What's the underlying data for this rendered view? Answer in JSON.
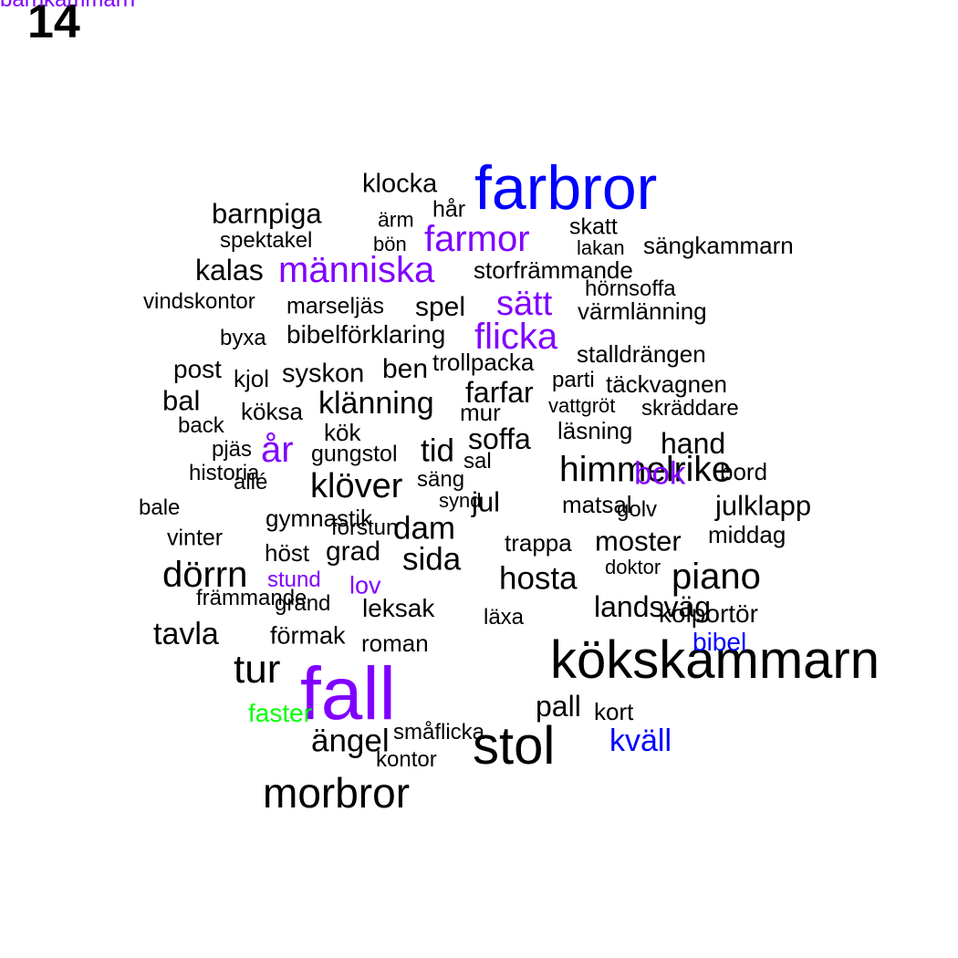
{
  "page_number": "14",
  "colors": {
    "black": "#000000",
    "purple": "#8000ff",
    "blue": "#0000ff",
    "green": "#00ff00"
  },
  "words": [
    {
      "text": "farbror",
      "color": "blue"
    },
    {
      "text": "klocka",
      "color": "black"
    },
    {
      "text": "hår",
      "color": "black"
    },
    {
      "text": "barnpiga",
      "color": "black"
    },
    {
      "text": "ärm",
      "color": "black"
    },
    {
      "text": "skatt",
      "color": "black"
    },
    {
      "text": "spektakel",
      "color": "black"
    },
    {
      "text": "bön",
      "color": "black"
    },
    {
      "text": "farmor",
      "color": "purple"
    },
    {
      "text": "lakan",
      "color": "black"
    },
    {
      "text": "sängkammarn",
      "color": "black"
    },
    {
      "text": "kalas",
      "color": "black"
    },
    {
      "text": "människa",
      "color": "purple"
    },
    {
      "text": "storfrämmande",
      "color": "black"
    },
    {
      "text": "hörnsoffa",
      "color": "black"
    },
    {
      "text": "vindskontor",
      "color": "black"
    },
    {
      "text": "marseljäs",
      "color": "black"
    },
    {
      "text": "spel",
      "color": "black"
    },
    {
      "text": "sätt",
      "color": "purple"
    },
    {
      "text": "värmlänning",
      "color": "black"
    },
    {
      "text": "byxa",
      "color": "black"
    },
    {
      "text": "bibelförklaring",
      "color": "black"
    },
    {
      "text": "flicka",
      "color": "purple"
    },
    {
      "text": "stalldrängen",
      "color": "black"
    },
    {
      "text": "post",
      "color": "black"
    },
    {
      "text": "kjol",
      "color": "black"
    },
    {
      "text": "syskon",
      "color": "black"
    },
    {
      "text": "ben",
      "color": "black"
    },
    {
      "text": "trollpacka",
      "color": "black"
    },
    {
      "text": "parti",
      "color": "black"
    },
    {
      "text": "täckvagnen",
      "color": "black"
    },
    {
      "text": "bal",
      "color": "black"
    },
    {
      "text": "köksa",
      "color": "black"
    },
    {
      "text": "klänning",
      "color": "black"
    },
    {
      "text": "farfar",
      "color": "black"
    },
    {
      "text": "mur",
      "color": "black"
    },
    {
      "text": "vattgröt",
      "color": "black"
    },
    {
      "text": "skräddare",
      "color": "black"
    },
    {
      "text": "back",
      "color": "black"
    },
    {
      "text": "kök",
      "color": "black"
    },
    {
      "text": "soffa",
      "color": "black"
    },
    {
      "text": "läsning",
      "color": "black"
    },
    {
      "text": "pjäs",
      "color": "black"
    },
    {
      "text": "år",
      "color": "purple"
    },
    {
      "text": "gungstol",
      "color": "black"
    },
    {
      "text": "tid",
      "color": "black"
    },
    {
      "text": "sal",
      "color": "black"
    },
    {
      "text": "hand",
      "color": "black"
    },
    {
      "text": "historia",
      "color": "black"
    },
    {
      "text": "allé",
      "color": "black"
    },
    {
      "text": "klöver",
      "color": "black"
    },
    {
      "text": "säng",
      "color": "black"
    },
    {
      "text": "himmelrike",
      "color": "black"
    },
    {
      "text": "bok",
      "color": "purple"
    },
    {
      "text": "bord",
      "color": "black"
    },
    {
      "text": "bale",
      "color": "black"
    },
    {
      "text": "gymnastik",
      "color": "black"
    },
    {
      "text": "synd",
      "color": "black"
    },
    {
      "text": "jul",
      "color": "black"
    },
    {
      "text": "matsal",
      "color": "black"
    },
    {
      "text": "golv",
      "color": "black"
    },
    {
      "text": "julklapp",
      "color": "black"
    },
    {
      "text": "vinter",
      "color": "black"
    },
    {
      "text": "förstun",
      "color": "black"
    },
    {
      "text": "dam",
      "color": "black"
    },
    {
      "text": "trappa",
      "color": "black"
    },
    {
      "text": "moster",
      "color": "black"
    },
    {
      "text": "middag",
      "color": "black"
    },
    {
      "text": "höst",
      "color": "black"
    },
    {
      "text": "grad",
      "color": "black"
    },
    {
      "text": "sida",
      "color": "black"
    },
    {
      "text": "dörrn",
      "color": "black"
    },
    {
      "text": "stund",
      "color": "purple"
    },
    {
      "text": "hosta",
      "color": "black"
    },
    {
      "text": "doktor",
      "color": "black"
    },
    {
      "text": "piano",
      "color": "black"
    },
    {
      "text": "lov",
      "color": "purple"
    },
    {
      "text": "främmande",
      "color": "black"
    },
    {
      "text": "grand",
      "color": "black"
    },
    {
      "text": "leksak",
      "color": "black"
    },
    {
      "text": "landsväg",
      "color": "black"
    },
    {
      "text": "läxa",
      "color": "black"
    },
    {
      "text": "kolportör",
      "color": "black"
    },
    {
      "text": "tavla",
      "color": "black"
    },
    {
      "text": "förmak",
      "color": "black"
    },
    {
      "text": "roman",
      "color": "black"
    },
    {
      "text": "kökskammarn",
      "color": "black"
    },
    {
      "text": "bibel",
      "color": "blue"
    },
    {
      "text": "tur",
      "color": "black"
    },
    {
      "text": "fall",
      "color": "purple"
    },
    {
      "text": "faster",
      "color": "green"
    },
    {
      "text": "pall",
      "color": "black"
    },
    {
      "text": "kort",
      "color": "black"
    },
    {
      "text": "småflicka",
      "color": "black"
    },
    {
      "text": "ängel",
      "color": "black"
    },
    {
      "text": "stol",
      "color": "black"
    },
    {
      "text": "kväll",
      "color": "blue"
    },
    {
      "text": "kontor",
      "color": "black"
    },
    {
      "text": "morbror",
      "color": "black"
    },
    {
      "text": "barnkammarn",
      "color": "purple"
    }
  ]
}
